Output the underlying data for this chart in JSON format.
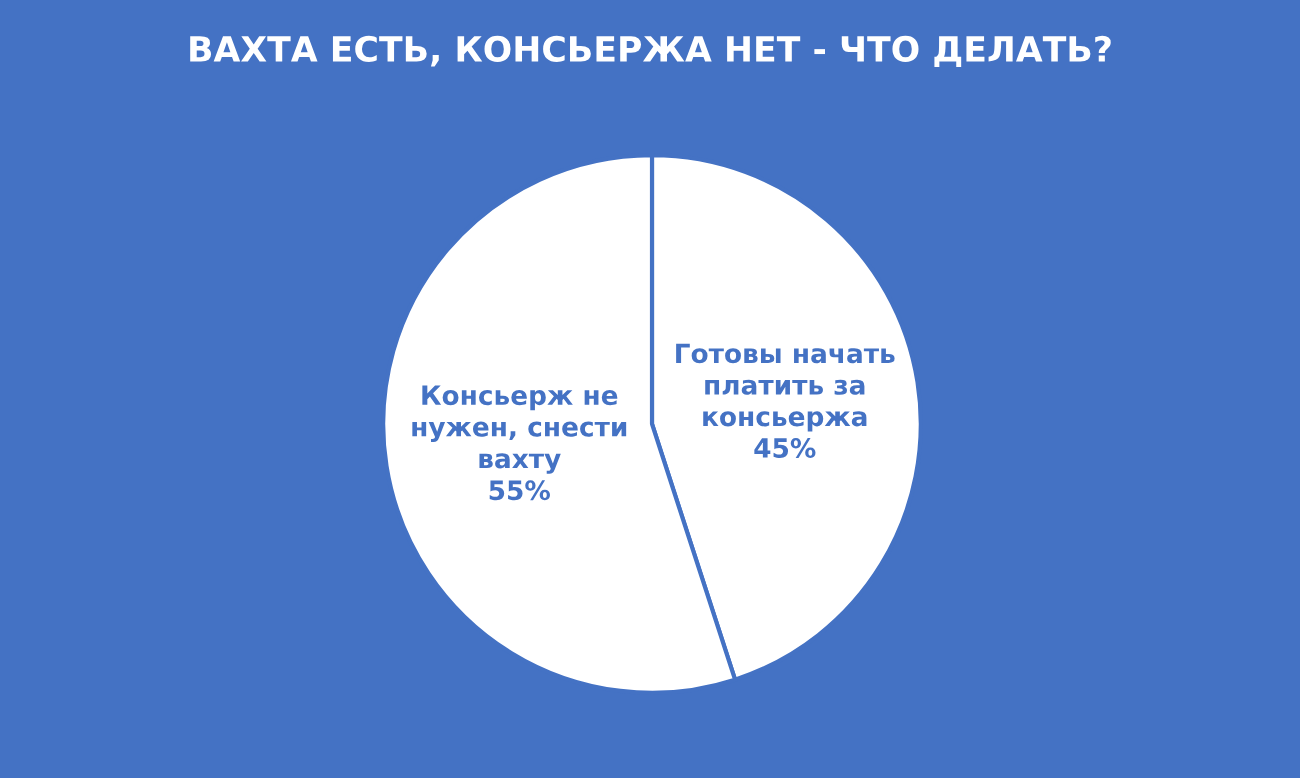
{
  "chart_data": {
    "type": "pie",
    "title": "ВАХТА ЕСТЬ, КОНСЬЕРЖА НЕТ - ЧТО ДЕЛАТЬ?",
    "categories": [
      "Готовы начать платить за консьержа",
      "Консьерж не нужен, снести вахту"
    ],
    "values": [
      45,
      55
    ],
    "value_labels": [
      "45%",
      "55%"
    ],
    "colors": [
      "#ffffff",
      "#ffffff"
    ],
    "legend": false
  }
}
